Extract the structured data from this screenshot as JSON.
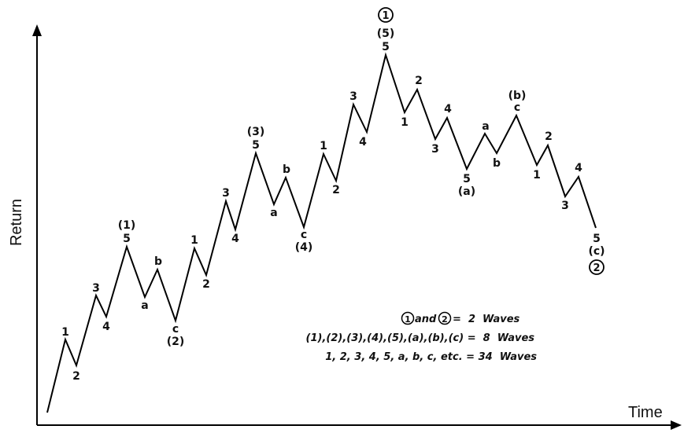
{
  "axes": {
    "y_label": "Return",
    "x_label": "Time"
  },
  "labels": {
    "w1": "1",
    "w2": "2",
    "w3": "3",
    "w4": "4",
    "w5": "5",
    "wa": "a",
    "wb": "b",
    "wc": "c",
    "p1": "(1)",
    "p2": "(2)",
    "p3": "(3)",
    "p4": "(4)",
    "p5": "(5)",
    "pa": "(a)",
    "pb": "(b)",
    "pc": "(c)",
    "c1": "1",
    "c2": "2"
  },
  "legend": {
    "line1_mid": "and",
    "line1_rest": "=  2  Waves",
    "line2": "(1),(2),(3),(4),(5),(a),(b),(c) =  8  Waves",
    "line3": "1, 2, 3, 4, 5, a, b, c, etc. = 34  Waves"
  }
}
